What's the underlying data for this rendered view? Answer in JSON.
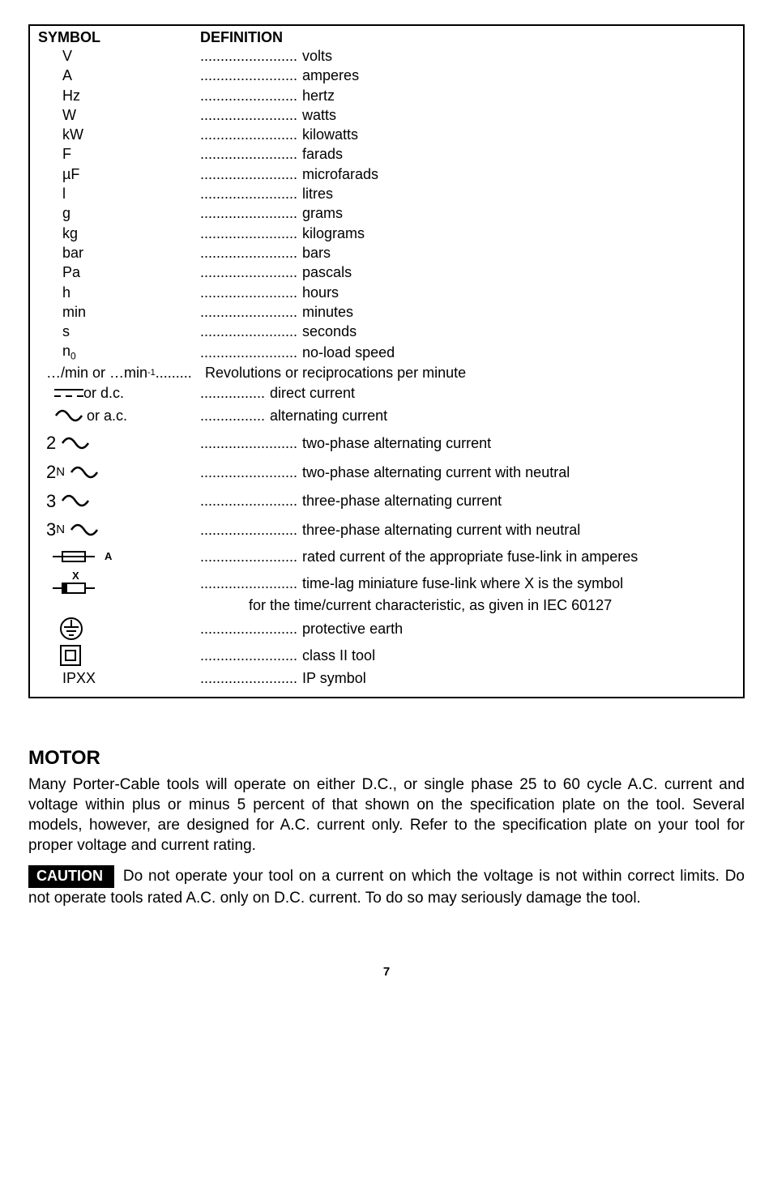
{
  "table": {
    "header_symbol": "SYMBOL",
    "header_definition": "DEFINITION",
    "dots_short": "........................",
    "dots_med": "................",
    "rows_simple": [
      {
        "sym": "V",
        "def": "volts"
      },
      {
        "sym": "A",
        "def": "amperes"
      },
      {
        "sym": "Hz",
        "def": "hertz"
      },
      {
        "sym": "W",
        "def": "watts"
      },
      {
        "sym": "kW",
        "def": "kilowatts"
      },
      {
        "sym": "F",
        "def": "farads"
      },
      {
        "sym": "µF",
        "def": "microfarads"
      },
      {
        "sym": "l",
        "def": "litres"
      },
      {
        "sym": "g",
        "def": "grams"
      },
      {
        "sym": "kg",
        "def": "kilograms"
      },
      {
        "sym": "bar",
        "def": "bars"
      },
      {
        "sym": "Pa",
        "def": "pascals"
      },
      {
        "sym": "h",
        "def": "hours"
      },
      {
        "sym": "min",
        "def": "minutes"
      },
      {
        "sym": "s",
        "def": "seconds"
      }
    ],
    "n0_def": "no-load speed",
    "permin_sym": "…/min  or  …min",
    "permin_sup": "-1",
    "permin_dots": " .........",
    "permin_def": "Revolutions or reciprocations per minute",
    "dc_label": " or d.c. ",
    "dc_def": "direct current",
    "ac_label": " or a.c. ",
    "ac_def": "alternating current",
    "phase2_def": "two-phase alternating current",
    "phase2n_def": "two-phase alternating current with neutral",
    "phase3_def": "three-phase alternating current",
    "phase3n_def": "three-phase alternating current with neutral",
    "fuse_a_letter": "A",
    "fuse_a_def": "rated current of the appropriate fuse-link in amperes",
    "fuse_x_letter": "X",
    "fuse_x_def": "time-lag miniature fuse-link where X is the symbol",
    "fuse_x_cont": "for the time/current characteristic, as given in IEC 60127",
    "pe_def": "protective earth",
    "class2_def": "class II tool",
    "ipxx_sym": "IPXX",
    "ipxx_def": "IP symbol"
  },
  "motor": {
    "title": "MOTOR",
    "para": "Many Porter-Cable tools will operate on either D.C., or single phase 25 to 60 cycle A.C. current and voltage within plus or minus 5 percent of that shown on the specification plate on the tool. Several models, however, are designed for A.C. current only. Refer to the specification plate on your tool for proper voltage and current rating.",
    "caution_label": "CAUTION",
    "caution_text": " Do not operate your tool on a current on which the voltage is not within correct limits. Do not operate tools rated A.C. only on D.C. current. To do so may seriously damage the tool."
  },
  "page": "7"
}
